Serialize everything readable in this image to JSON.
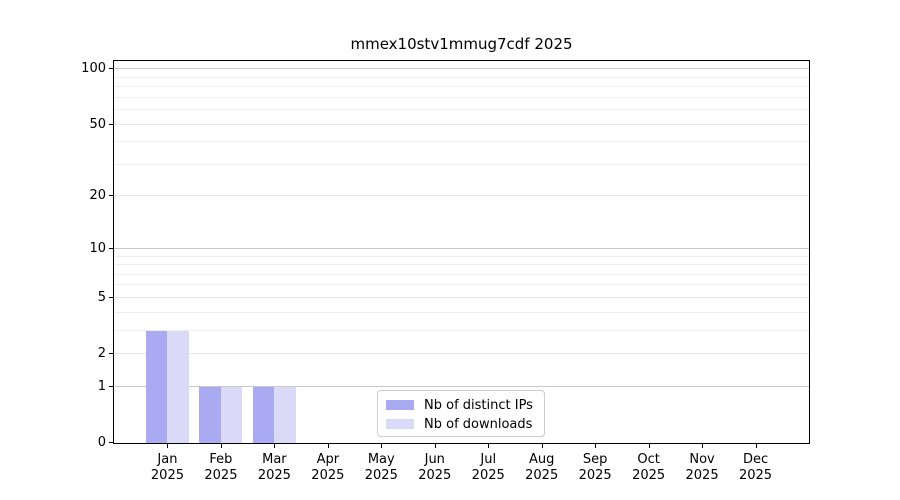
{
  "chart_data": {
    "type": "bar",
    "title": "mmex10stv1mmug7cdf 2025",
    "categories": [
      {
        "label": "Jan",
        "year": "2025"
      },
      {
        "label": "Feb",
        "year": "2025"
      },
      {
        "label": "Mar",
        "year": "2025"
      },
      {
        "label": "Apr",
        "year": "2025"
      },
      {
        "label": "May",
        "year": "2025"
      },
      {
        "label": "Jun",
        "year": "2025"
      },
      {
        "label": "Jul",
        "year": "2025"
      },
      {
        "label": "Aug",
        "year": "2025"
      },
      {
        "label": "Sep",
        "year": "2025"
      },
      {
        "label": "Oct",
        "year": "2025"
      },
      {
        "label": "Nov",
        "year": "2025"
      },
      {
        "label": "Dec",
        "year": "2025"
      }
    ],
    "series": [
      {
        "name": "Nb of distinct IPs",
        "color": "#aaaaf2",
        "values": [
          3,
          1,
          1,
          0,
          0,
          0,
          0,
          0,
          0,
          0,
          0,
          0
        ]
      },
      {
        "name": "Nb of downloads",
        "color": "#dadaf8",
        "values": [
          3,
          1,
          1,
          0,
          0,
          0,
          0,
          0,
          0,
          0,
          0,
          0
        ]
      }
    ],
    "y_axis": {
      "scale": "log1p",
      "ticks": [
        0,
        1,
        2,
        5,
        10,
        20,
        50,
        100
      ],
      "decade_ticks": [
        1,
        10,
        100
      ],
      "minor_ticks": [
        3,
        4,
        6,
        7,
        8,
        9,
        30,
        40,
        60,
        70,
        80,
        90
      ],
      "max": 110
    },
    "grid": true,
    "legend_position": "bottom-center-inside",
    "colors": {
      "grid_major": "#c9c9c9",
      "grid_labeled": "#e7e7e7",
      "grid_minor": "#efefef",
      "axis": "#000000",
      "background": "#ffffff"
    }
  }
}
